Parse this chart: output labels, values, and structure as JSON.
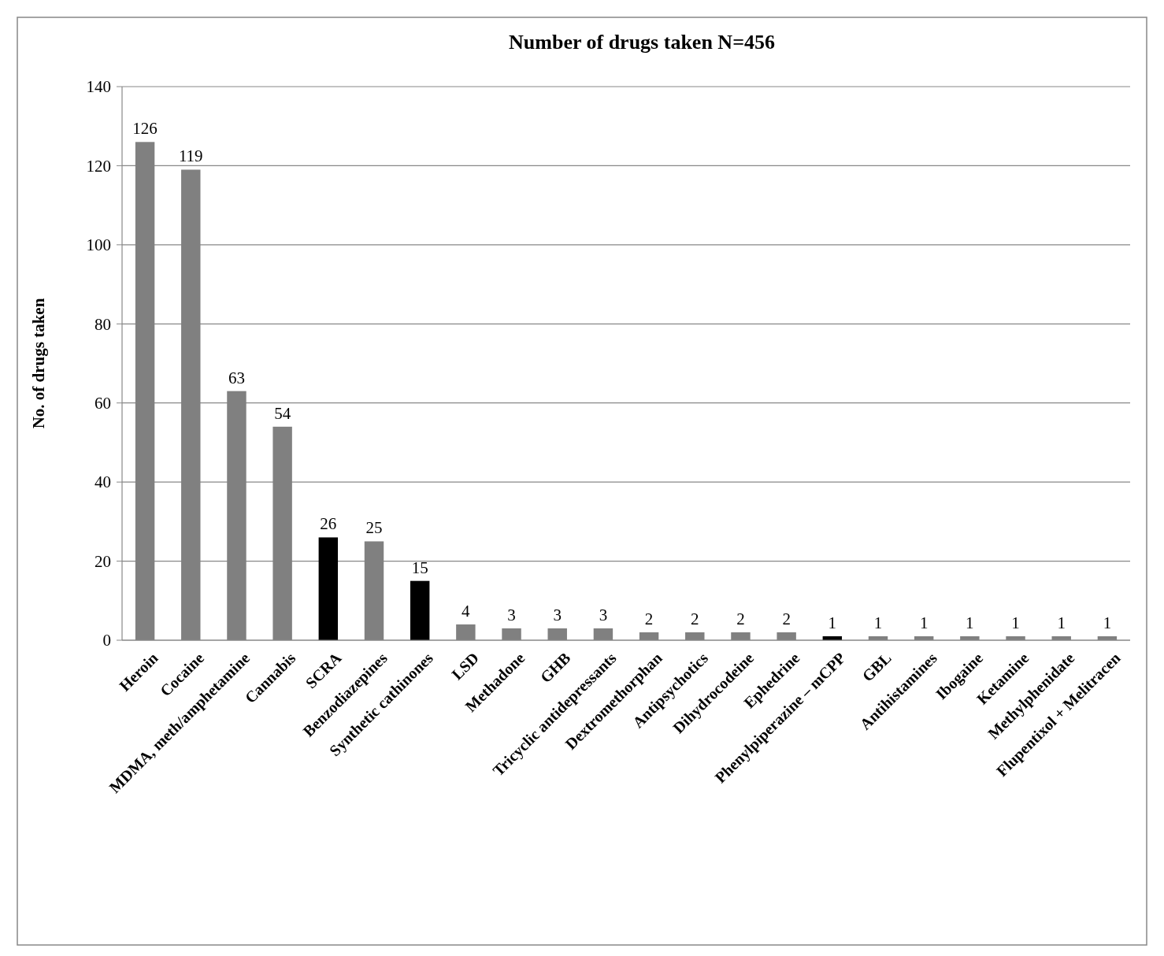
{
  "chart_data": {
    "type": "bar",
    "title": "Number of drugs taken N=456",
    "ylabel": "No. of drugs taken",
    "categories": [
      "Heroin",
      "Cocaine",
      "MDMA, meth/amphetamine",
      "Cannabis",
      "SCRA",
      "Benzodiazepines",
      "Synthetic cathinones",
      "LSD",
      "Methadone",
      "GHB",
      "Tricyclic antidepressants",
      "Dextromethorphan",
      "Antipsychotics",
      "Dihydrocodeine",
      "Ephedrine",
      "Phenylpiperazine – mCPP",
      "GBL",
      "Antihistamines",
      "Ibogaine",
      "Ketamine",
      "Methylphenidate",
      "Flupentixol + Melitracen"
    ],
    "values": [
      126,
      119,
      63,
      54,
      26,
      25,
      15,
      4,
      3,
      3,
      3,
      2,
      2,
      2,
      2,
      1,
      1,
      1,
      1,
      1,
      1,
      1
    ],
    "colors": [
      "#808080",
      "#808080",
      "#808080",
      "#808080",
      "#000000",
      "#808080",
      "#000000",
      "#808080",
      "#808080",
      "#808080",
      "#808080",
      "#808080",
      "#808080",
      "#808080",
      "#808080",
      "#000000",
      "#808080",
      "#808080",
      "#808080",
      "#808080",
      "#808080",
      "#808080"
    ],
    "ylim": [
      0,
      140
    ],
    "yticks": [
      0,
      20,
      40,
      60,
      80,
      100,
      120,
      140
    ],
    "grid": "y",
    "data_labels": true
  }
}
